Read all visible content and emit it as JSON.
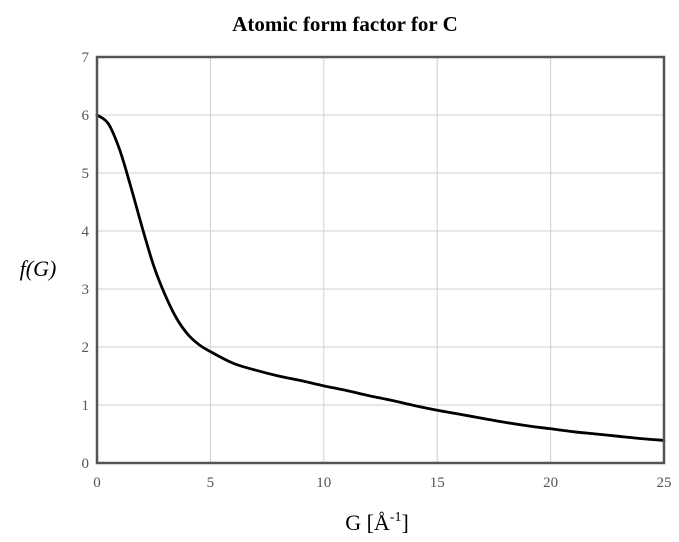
{
  "chart_data": {
    "type": "line",
    "title": "Atomic form factor for C",
    "xlabel": {
      "base": "G [Å",
      "sup": "-1",
      "close": "]"
    },
    "ylabel": "f(G)",
    "xlim": [
      0,
      25
    ],
    "ylim": [
      0,
      7
    ],
    "xticks": [
      "0",
      "5",
      "10",
      "15",
      "20",
      "25"
    ],
    "yticks": [
      "0",
      "1",
      "2",
      "3",
      "4",
      "5",
      "6",
      "7"
    ],
    "grid": true,
    "series": [
      {
        "color": "#000000",
        "x": [
          0,
          0.5,
          1,
          1.5,
          2,
          2.5,
          3,
          3.5,
          4,
          4.5,
          5,
          6,
          7,
          8,
          9,
          10,
          11,
          12,
          13,
          14,
          15,
          16,
          17,
          18,
          19,
          20,
          21,
          22,
          23,
          24,
          25
        ],
        "y": [
          6.0,
          5.85,
          5.4,
          4.75,
          4.05,
          3.4,
          2.9,
          2.5,
          2.22,
          2.04,
          1.92,
          1.72,
          1.6,
          1.5,
          1.42,
          1.33,
          1.25,
          1.16,
          1.08,
          0.99,
          0.91,
          0.84,
          0.77,
          0.7,
          0.64,
          0.59,
          0.54,
          0.5,
          0.46,
          0.42,
          0.39
        ]
      }
    ]
  }
}
